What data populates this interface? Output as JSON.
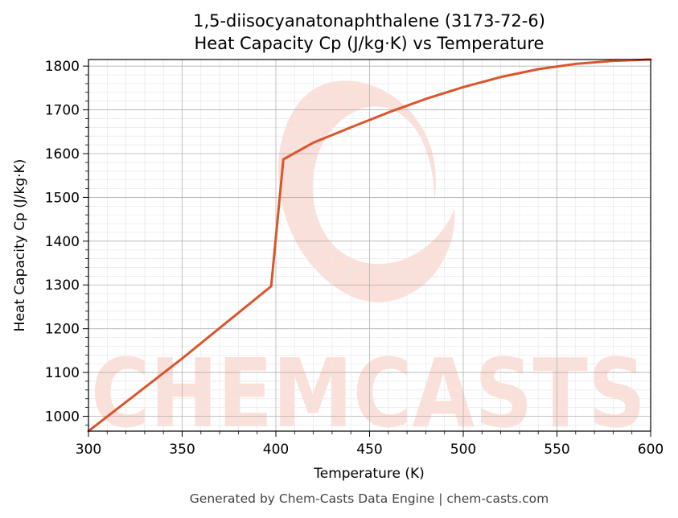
{
  "chart_data": {
    "type": "line",
    "title_line1": "1,5-diisocyanatonaphthalene (3173-72-6)",
    "title_line2": "Heat Capacity Cp (J/kg·K) vs Temperature",
    "xlabel": "Temperature (K)",
    "ylabel": "Heat Capacity Cp (J/kg·K)",
    "xlim": [
      300,
      600
    ],
    "ylim": [
      966,
      1815
    ],
    "xticks": [
      300,
      350,
      400,
      450,
      500,
      550,
      600
    ],
    "yticks": [
      1000,
      1100,
      1200,
      1300,
      1400,
      1500,
      1600,
      1700,
      1800
    ],
    "grid": true,
    "line_color": "#d9552a",
    "series": [
      {
        "x": [
          300,
          350,
          397.5,
          404,
          420,
          440,
          460,
          480,
          500,
          520,
          540,
          560,
          580,
          600
        ],
        "y": [
          966,
          1132,
          1297,
          1587,
          1625,
          1660,
          1694,
          1725,
          1752,
          1775,
          1793,
          1805,
          1812,
          1815
        ]
      }
    ]
  },
  "watermark": "CHEMCASTS",
  "footer": "Generated by Chem-Casts Data Engine | chem-casts.com"
}
